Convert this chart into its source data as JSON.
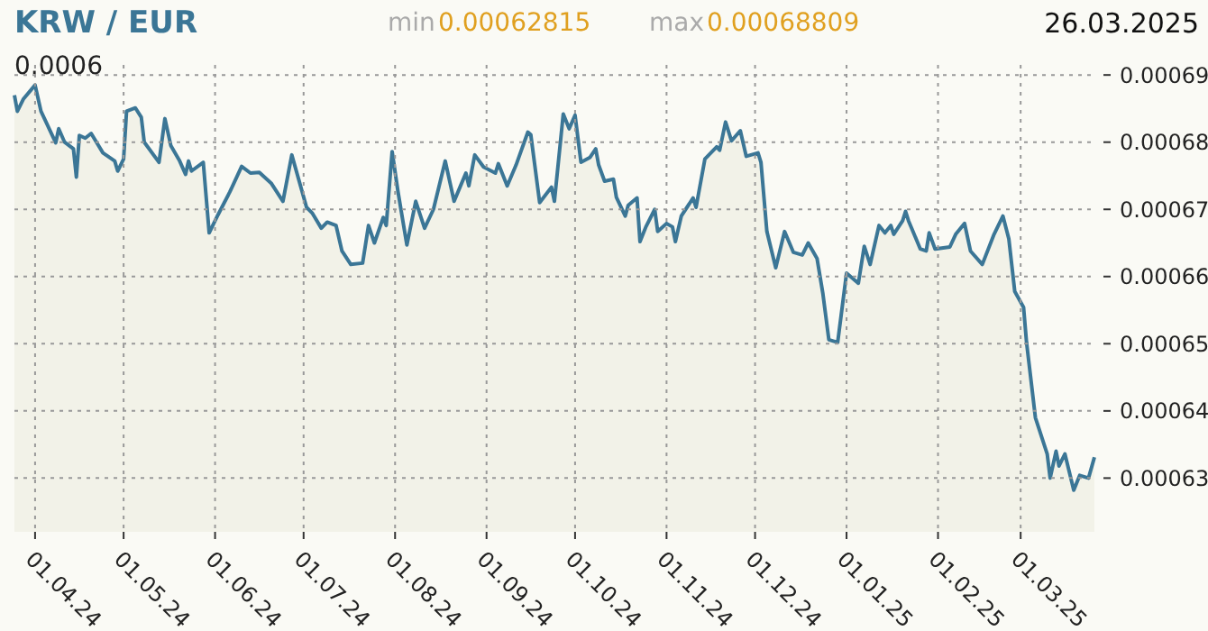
{
  "chart_data": {
    "type": "area",
    "title": "KRW / EUR",
    "ylabel": "0.0006",
    "annotations": [
      "min",
      "0.00062815",
      "max",
      "0.00068809",
      "26.03.2025"
    ],
    "x": [
      "2024-03-25",
      "2024-03-26",
      "2024-03-28",
      "2024-04-01",
      "2024-04-03",
      "2024-04-08",
      "2024-04-09",
      "2024-04-11",
      "2024-04-14",
      "2024-04-15",
      "2024-04-16",
      "2024-04-18",
      "2024-04-20",
      "2024-04-24",
      "2024-04-28",
      "2024-04-29",
      "2024-05-01",
      "2024-05-02",
      "2024-05-05",
      "2024-05-07",
      "2024-05-08",
      "2024-05-13",
      "2024-05-15",
      "2024-05-17",
      "2024-05-20",
      "2024-05-22",
      "2024-05-23",
      "2024-05-24",
      "2024-05-28",
      "2024-05-30",
      "2024-06-02",
      "2024-06-06",
      "2024-06-10",
      "2024-06-13",
      "2024-06-16",
      "2024-06-20",
      "2024-06-24",
      "2024-06-27",
      "2024-07-02",
      "2024-07-04",
      "2024-07-07",
      "2024-07-09",
      "2024-07-12",
      "2024-07-14",
      "2024-07-17",
      "2024-07-21",
      "2024-07-23",
      "2024-07-25",
      "2024-07-28",
      "2024-07-29",
      "2024-07-31",
      "2024-08-02",
      "2024-08-05",
      "2024-08-08",
      "2024-08-11",
      "2024-08-14",
      "2024-08-18",
      "2024-08-21",
      "2024-08-25",
      "2024-08-26",
      "2024-08-28",
      "2024-08-31",
      "2024-09-04",
      "2024-09-05",
      "2024-09-08",
      "2024-09-11",
      "2024-09-15",
      "2024-09-16",
      "2024-09-19",
      "2024-09-23",
      "2024-09-24",
      "2024-09-27",
      "2024-09-29",
      "2024-10-01",
      "2024-10-03",
      "2024-10-06",
      "2024-10-08",
      "2024-10-09",
      "2024-10-11",
      "2024-10-14",
      "2024-10-15",
      "2024-10-18",
      "2024-10-19",
      "2024-10-22",
      "2024-10-23",
      "2024-10-25",
      "2024-10-28",
      "2024-10-29",
      "2024-11-01",
      "2024-11-03",
      "2024-11-04",
      "2024-11-06",
      "2024-11-10",
      "2024-11-11",
      "2024-11-14",
      "2024-11-18",
      "2024-11-19",
      "2024-11-21",
      "2024-11-23",
      "2024-11-26",
      "2024-11-28",
      "2024-12-02",
      "2024-12-03",
      "2024-12-05",
      "2024-12-08",
      "2024-12-11",
      "2024-12-14",
      "2024-12-17",
      "2024-12-19",
      "2024-12-22",
      "2024-12-24",
      "2024-12-26",
      "2024-12-29",
      "2025-01-01",
      "2025-01-05",
      "2025-01-07",
      "2025-01-09",
      "2025-01-12",
      "2025-01-14",
      "2025-01-16",
      "2025-01-17",
      "2025-01-20",
      "2025-01-21",
      "2025-01-22",
      "2025-01-26",
      "2025-01-28",
      "2025-01-29",
      "2025-01-31",
      "2025-02-05",
      "2025-02-07",
      "2025-02-10",
      "2025-02-12",
      "2025-02-16",
      "2025-02-20",
      "2025-02-23",
      "2025-02-25",
      "2025-02-27",
      "2025-03-02",
      "2025-03-03",
      "2025-03-06",
      "2025-03-10",
      "2025-03-11",
      "2025-03-13",
      "2025-03-14",
      "2025-03-16",
      "2025-03-19",
      "2025-03-21",
      "2025-03-24",
      "2025-03-26"
    ],
    "series": [
      {
        "color": "#3b7696",
        "values": [
          0.000687,
          0.0006846,
          0.0006864,
          0.0006885,
          0.0006846,
          0.0006799,
          0.000682,
          0.00068,
          0.000679,
          0.0006748,
          0.000681,
          0.0006806,
          0.0006813,
          0.0006784,
          0.0006772,
          0.0006757,
          0.0006775,
          0.0006846,
          0.0006851,
          0.0006837,
          0.00068,
          0.000677,
          0.0006835,
          0.0006795,
          0.0006772,
          0.0006752,
          0.0006772,
          0.0006757,
          0.000677,
          0.0006665,
          0.0006692,
          0.0006726,
          0.0006764,
          0.0006754,
          0.0006755,
          0.0006739,
          0.0006712,
          0.0006781,
          0.0006703,
          0.0006694,
          0.0006672,
          0.0006681,
          0.0006676,
          0.0006638,
          0.0006618,
          0.000662,
          0.0006676,
          0.000665,
          0.0006688,
          0.0006676,
          0.0006786,
          0.0006726,
          0.0006647,
          0.0006712,
          0.0006672,
          0.00067,
          0.0006772,
          0.0006712,
          0.0006754,
          0.0006735,
          0.0006781,
          0.0006763,
          0.0006754,
          0.0006768,
          0.0006735,
          0.0006766,
          0.0006815,
          0.0006811,
          0.000671,
          0.0006733,
          0.0006712,
          0.0006842,
          0.000682,
          0.000684,
          0.000677,
          0.0006777,
          0.000679,
          0.0006766,
          0.0006742,
          0.0006745,
          0.0006718,
          0.000669,
          0.0006706,
          0.0006717,
          0.0006652,
          0.0006674,
          0.00067,
          0.0006667,
          0.0006679,
          0.0006674,
          0.0006652,
          0.000669,
          0.0006717,
          0.0006703,
          0.0006775,
          0.0006793,
          0.0006788,
          0.000683,
          0.0006802,
          0.0006817,
          0.0006779,
          0.0006784,
          0.000677,
          0.0006667,
          0.0006613,
          0.0006667,
          0.0006636,
          0.0006632,
          0.000665,
          0.0006627,
          0.0006574,
          0.0006506,
          0.0006502,
          0.0006605,
          0.000659,
          0.0006645,
          0.0006618,
          0.0006676,
          0.0006665,
          0.0006676,
          0.0006663,
          0.0006683,
          0.0006697,
          0.0006683,
          0.0006641,
          0.0006638,
          0.0006665,
          0.0006641,
          0.0006644,
          0.0006663,
          0.0006679,
          0.0006638,
          0.0006618,
          0.0006663,
          0.000669,
          0.0006656,
          0.0006578,
          0.0006554,
          0.0006502,
          0.000639,
          0.0006336,
          0.00063,
          0.000634,
          0.0006318,
          0.0006336,
          0.0006282,
          0.0006304,
          0.00063,
          0.0006331
        ]
      }
    ],
    "xlim": [
      "2024-03-25",
      "2025-03-26"
    ],
    "xticks": [
      {
        "value": "2024-04-01",
        "label": "01.04.24"
      },
      {
        "value": "2024-05-01",
        "label": "01.05.24"
      },
      {
        "value": "2024-06-01",
        "label": "01.06.24"
      },
      {
        "value": "2024-07-01",
        "label": "01.07.24"
      },
      {
        "value": "2024-08-01",
        "label": "01.08.24"
      },
      {
        "value": "2024-09-01",
        "label": "01.09.24"
      },
      {
        "value": "2024-10-01",
        "label": "01.10.24"
      },
      {
        "value": "2024-11-01",
        "label": "01.11.24"
      },
      {
        "value": "2024-12-01",
        "label": "01.12.24"
      },
      {
        "value": "2025-01-01",
        "label": "01.01.25"
      },
      {
        "value": "2025-02-01",
        "label": "01.02.25"
      },
      {
        "value": "2025-03-01",
        "label": "01.03.25"
      }
    ],
    "ylim": [
      0.000622,
      0.0006915
    ],
    "yticks": [
      0.00063,
      0.00064,
      0.00065,
      0.00066,
      0.00067,
      0.00068,
      0.00069
    ],
    "grid": true
  }
}
